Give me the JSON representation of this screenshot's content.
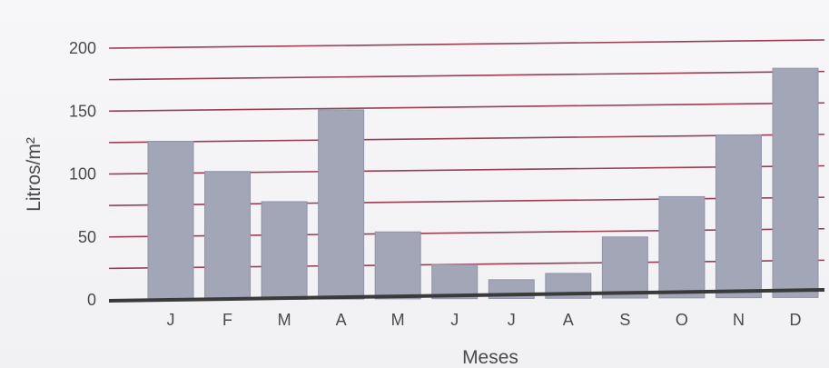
{
  "chart_data": {
    "type": "bar",
    "categories": [
      "J",
      "F",
      "M",
      "A",
      "M",
      "J",
      "J",
      "A",
      "S",
      "O",
      "N",
      "D"
    ],
    "values": [
      126,
      102,
      78,
      151,
      54,
      28,
      16,
      21,
      50,
      82,
      131,
      184
    ],
    "xlabel": "Meses",
    "ylabel": "Litros/m²",
    "ylim": [
      0,
      200
    ],
    "yticks": [
      0,
      50,
      100,
      150,
      200
    ],
    "grid": true,
    "legend": "none",
    "colors": {
      "bar": "#a3a6b7",
      "bar_edge": "#8f93a6",
      "grid": "#9a3d55",
      "axis": "#3a3a3a",
      "background": "#f4f4f6"
    }
  }
}
